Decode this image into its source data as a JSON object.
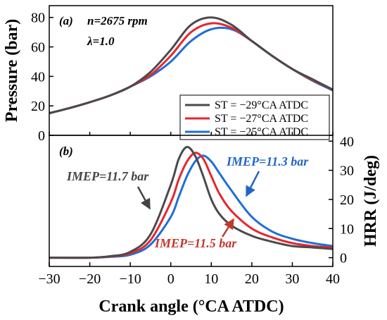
{
  "chart_data": [
    {
      "type": "line",
      "panel_label": "(a)",
      "annotations": [
        "n=2675 rpm",
        "λ=1.0"
      ],
      "xlabel": "Crank angle (°CA ATDC)",
      "ylabel": "Pressure (bar)",
      "xlim": [
        -30,
        40
      ],
      "ylim": [
        0,
        88
      ],
      "xticks": [
        -30,
        -20,
        -10,
        0,
        10,
        20,
        30,
        40
      ],
      "yticks": [
        0,
        20,
        40,
        60,
        80
      ],
      "grid": false,
      "legend": {
        "position": "bottom-right",
        "frame": true
      },
      "x": [
        -30,
        -25,
        -20,
        -15,
        -10,
        -5,
        0,
        5,
        10,
        15,
        20,
        25,
        30,
        35,
        40
      ],
      "series": [
        {
          "name": "ST = −29°CA ATDC",
          "color": "#4a4a4a",
          "values": [
            15,
            18.5,
            22.5,
            27,
            33,
            43,
            58,
            75,
            80,
            75,
            64,
            54,
            45,
            38,
            31
          ]
        },
        {
          "name": "ST = −27°CA ATDC",
          "color": "#e8262c",
          "values": [
            15,
            18.5,
            22.5,
            27,
            33,
            41,
            54,
            70,
            76,
            73,
            64,
            54,
            45,
            37.5,
            31
          ]
        },
        {
          "name": "ST = −25°CA ATDC",
          "color": "#1f6fd6",
          "values": [
            15,
            18.5,
            22.5,
            27,
            33,
            40,
            50,
            64,
            72,
            72,
            64,
            54,
            45,
            37,
            30.5
          ]
        }
      ]
    },
    {
      "type": "line",
      "panel_label": "(b)",
      "xlabel": "Crank angle (°CA ATDC)",
      "ylabel": "HRR (J/deg)",
      "xlim": [
        -30,
        40
      ],
      "ylim": [
        -3,
        42
      ],
      "xticks": [
        -30,
        -20,
        -10,
        0,
        10,
        20,
        30,
        40
      ],
      "yticks": [
        0,
        10,
        20,
        30,
        40
      ],
      "grid": false,
      "x": [
        -30,
        -20,
        -15,
        -10,
        -5,
        0,
        2,
        4,
        6,
        8,
        10,
        12,
        15,
        20,
        25,
        30,
        35,
        40
      ],
      "series": [
        {
          "name": "ST = −29°CA ATDC",
          "color": "#4a4a4a",
          "values": [
            0,
            0,
            0.5,
            2,
            8,
            25,
            34,
            38,
            35,
            28,
            20,
            15,
            11,
            7.5,
            5.5,
            4,
            3.5,
            3
          ]
        },
        {
          "name": "ST = −27°CA ATDC",
          "color": "#e8262c",
          "values": [
            0,
            0,
            0.4,
            1.5,
            6,
            19,
            27,
            33,
            36,
            34,
            28,
            22,
            16,
            10,
            7,
            5,
            4,
            3.5
          ]
        },
        {
          "name": "ST = −25°CA ATDC",
          "color": "#1f6fd6",
          "values": [
            0,
            0,
            0.3,
            1,
            4.5,
            14,
            21,
            28,
            33,
            35,
            33,
            29,
            23,
            14,
            9,
            6.5,
            5,
            4
          ]
        }
      ],
      "annotations": [
        {
          "text": "IMEP=11.7 bar",
          "color": "#444444"
        },
        {
          "text": "IMEP=11.5 bar",
          "color": "#c0392b"
        },
        {
          "text": "IMEP=11.3 bar",
          "color": "#2166c5"
        }
      ]
    }
  ]
}
